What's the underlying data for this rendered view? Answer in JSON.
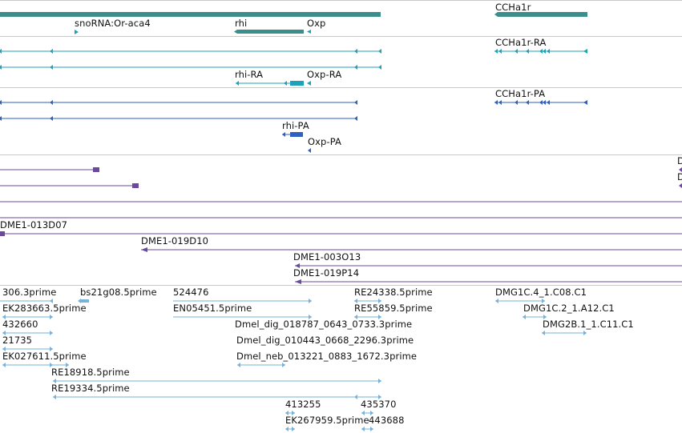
{
  "colors": {
    "gene": "#3a8f8c",
    "transcript_rna": "#1ea2b8",
    "transcript_protein": "#2f5fbf",
    "cdna": "#6b4a9e",
    "est": "#79b2d8"
  },
  "tracks": [
    {
      "kind": "gene",
      "features": [
        {
          "label": "snoRNA:Or-aca4",
          "name": "feature-snorna-or-aca4"
        },
        {
          "label": "rhi",
          "name": "feature-rhi"
        },
        {
          "label": "Oxp",
          "name": "feature-oxp"
        },
        {
          "label": "CCHa1r",
          "name": "feature-ccha1r"
        }
      ]
    },
    {
      "kind": "transcript-rna",
      "features": [
        {
          "label": "CCHa1r-RA",
          "name": "feature-ccha1r-ra"
        },
        {
          "label": "rhi-RA",
          "name": "feature-rhi-ra"
        },
        {
          "label": "Oxp-RA",
          "name": "feature-oxp-ra"
        }
      ]
    },
    {
      "kind": "transcript-protein",
      "features": [
        {
          "label": "CCHa1r-PA",
          "name": "feature-ccha1r-pa"
        },
        {
          "label": "rhi-PA",
          "name": "feature-rhi-pa"
        },
        {
          "label": "Oxp-PA",
          "name": "feature-oxp-pa"
        }
      ]
    },
    {
      "kind": "cdna",
      "features": [
        {
          "label": "DME1-013D07",
          "name": "feature-dme1-013d07"
        },
        {
          "label": "DME1-019D10",
          "name": "feature-dme1-019d10"
        },
        {
          "label": "DME1-003O13",
          "name": "feature-dme1-003o13"
        },
        {
          "label": "DME1-019P14",
          "name": "feature-dme1-019p14"
        },
        {
          "label": "D",
          "name": "feature-d-top"
        },
        {
          "label": "D",
          "name": "feature-d-bottom"
        }
      ]
    },
    {
      "kind": "est",
      "features": [
        {
          "label": "306.3prime",
          "name": "feature-306-3prime"
        },
        {
          "label": "bs21g08.5prime",
          "name": "feature-bs21g08-5prime"
        },
        {
          "label": "524476",
          "name": "feature-524476"
        },
        {
          "label": "RE24338.5prime",
          "name": "feature-re24338-5prime"
        },
        {
          "label": "DMG1C.4_1.C08.C1",
          "name": "feature-dmg1c-4-1-c08-c1"
        },
        {
          "label": "EK283663.5prime",
          "name": "feature-ek283663-5prime"
        },
        {
          "label": "EN05451.5prime",
          "name": "feature-en05451-5prime"
        },
        {
          "label": "RE55859.5prime",
          "name": "feature-re55859-5prime"
        },
        {
          "label": "DMG1C.2_1.A12.C1",
          "name": "feature-dmg1c-2-1-a12-c1"
        },
        {
          "label": "432660",
          "name": "feature-432660"
        },
        {
          "label": "Dmel_dig_018787_0643_0733.3prime",
          "name": "feature-dmel-dig-018787"
        },
        {
          "label": "DMG2B.1_1.C11.C1",
          "name": "feature-dmg2b-1-1-c11-c1"
        },
        {
          "label": "21735",
          "name": "feature-21735"
        },
        {
          "label": "Dmel_dig_010443_0668_2296.3prime",
          "name": "feature-dmel-dig-010443"
        },
        {
          "label": "EK027611.5prime",
          "name": "feature-ek027611-5prime"
        },
        {
          "label": "Dmel_neb_013221_0883_1672.3prime",
          "name": "feature-dmel-neb-013221"
        },
        {
          "label": "RE18918.5prime",
          "name": "feature-re18918-5prime"
        },
        {
          "label": "RE19334.5prime",
          "name": "feature-re19334-5prime"
        },
        {
          "label": "413255",
          "name": "feature-413255"
        },
        {
          "label": "435370",
          "name": "feature-435370"
        },
        {
          "label": "EK267959.5prime",
          "name": "feature-ek267959-5prime"
        },
        {
          "label": "443688",
          "name": "feature-443688"
        }
      ]
    }
  ]
}
